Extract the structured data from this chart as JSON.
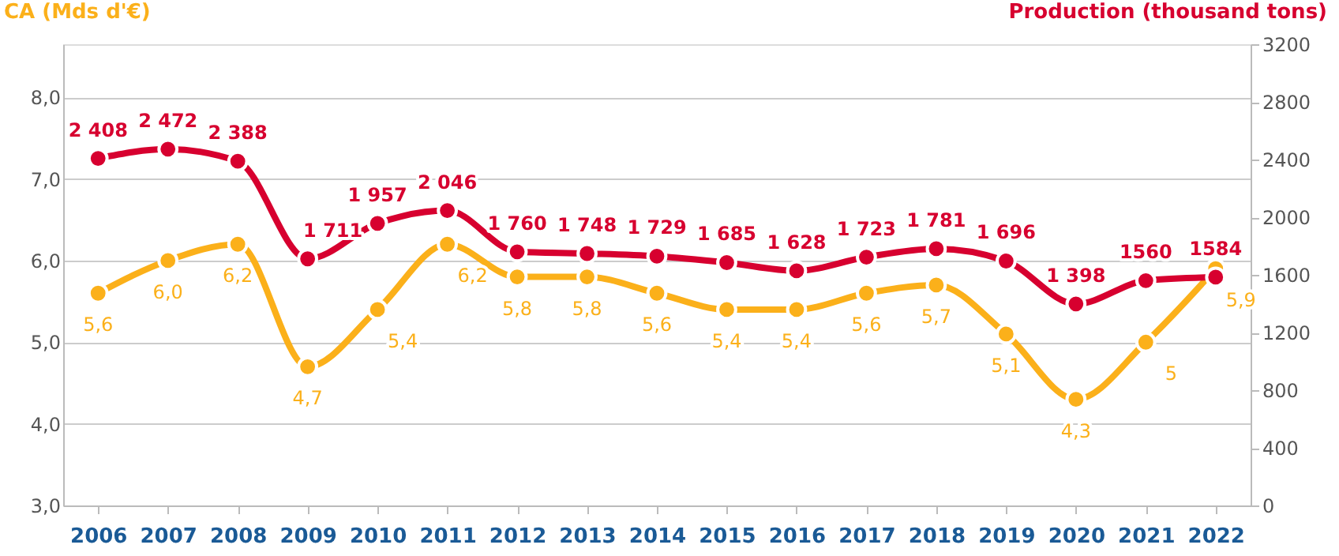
{
  "chart_data": {
    "type": "line",
    "ylabel": "CA (Mds d'€)",
    "y2label": "Production (thousand tons)",
    "categories": [
      "2006",
      "2007",
      "2008",
      "2009",
      "2010",
      "2011",
      "2012",
      "2013",
      "2014",
      "2015",
      "2016",
      "2017",
      "2018",
      "2019",
      "2020",
      "2021",
      "2022"
    ],
    "series": [
      {
        "color": "#fbb01a",
        "values": [
          5.6,
          6.0,
          6.2,
          4.7,
          5.4,
          6.2,
          5.8,
          5.8,
          5.6,
          5.4,
          5.4,
          5.6,
          5.7,
          5.1,
          4.3,
          5,
          5.9
        ],
        "value_labels": [
          "5,6",
          "6,0",
          "6,2",
          "4,7",
          "5,4",
          "6,2",
          "5,8",
          "5,8",
          "5,6",
          "5,4",
          "5,4",
          "5,6",
          "5,7",
          "5,1",
          "4,3",
          "5",
          "5,9"
        ]
      },
      {
        "color": "#d7002f",
        "axis": "y2",
        "values": [
          2408,
          2472,
          2388,
          1711,
          1957,
          2046,
          1760,
          1748,
          1729,
          1685,
          1628,
          1723,
          1781,
          1696,
          1398,
          1560,
          1584
        ],
        "value_labels": [
          "2 408",
          "2 472",
          "2 388",
          "1 711",
          "1 957",
          "2 046",
          "1 760",
          "1 748",
          "1 729",
          "1 685",
          "1 628",
          "1 723",
          "1 781",
          "1 696",
          "1 398",
          "1560",
          "1584"
        ]
      }
    ],
    "ylim": [
      3,
      8.65
    ],
    "yticks": [
      {
        "value": 3,
        "label": "3,0"
      },
      {
        "value": 4,
        "label": "4,0"
      },
      {
        "value": 5,
        "label": "5,0"
      },
      {
        "value": 6,
        "label": "6,0"
      },
      {
        "value": 7,
        "label": "7,0"
      },
      {
        "value": 8,
        "label": "8,0"
      }
    ],
    "y2lim": [
      0,
      3200
    ],
    "y2ticks": [
      0,
      400,
      800,
      1200,
      1600,
      2000,
      2400,
      2800,
      3200
    ],
    "grid": "y",
    "marker": "circle",
    "line_style": "solid"
  }
}
